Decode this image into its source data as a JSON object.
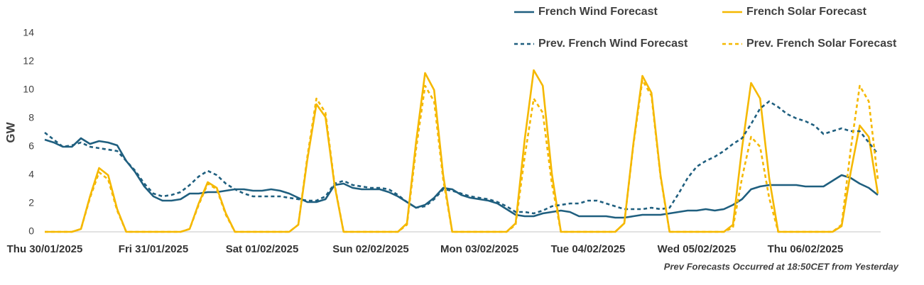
{
  "chart_data": {
    "type": "line",
    "y_label": "GW",
    "note": "Prev Forecasts Occurred at 18:50CET from Yesterday",
    "ylim": [
      0,
      14
    ],
    "yticks": [
      0,
      2,
      4,
      6,
      8,
      10,
      12,
      14
    ],
    "grid": false,
    "legend": "top-right",
    "categories": [
      "Thu 30/01/2025",
      null,
      null,
      null,
      null,
      null,
      null,
      null,
      null,
      null,
      null,
      null,
      "Fri 31/01/2025",
      null,
      null,
      null,
      null,
      null,
      null,
      null,
      null,
      null,
      null,
      null,
      "Sat 01/02/2025",
      null,
      null,
      null,
      null,
      null,
      null,
      null,
      null,
      null,
      null,
      null,
      "Sun 02/02/2025",
      null,
      null,
      null,
      null,
      null,
      null,
      null,
      null,
      null,
      null,
      null,
      "Mon 03/02/2025",
      null,
      null,
      null,
      null,
      null,
      null,
      null,
      null,
      null,
      null,
      null,
      "Tue 04/02/2025",
      null,
      null,
      null,
      null,
      null,
      null,
      null,
      null,
      null,
      null,
      null,
      "Wed 05/02/2025",
      null,
      null,
      null,
      null,
      null,
      null,
      null,
      null,
      null,
      null,
      null,
      "Thu 06/02/2025",
      null,
      null,
      null,
      null,
      null,
      null,
      null,
      null
    ],
    "series": [
      {
        "name": "French Wind Forecast",
        "color": "#1f5f7f",
        "line_style": "solid",
        "values": [
          6.5,
          6.3,
          6.0,
          6.0,
          6.6,
          6.2,
          6.4,
          6.3,
          6.1,
          5.0,
          4.2,
          3.2,
          2.5,
          2.2,
          2.2,
          2.3,
          2.7,
          2.7,
          2.8,
          2.8,
          2.9,
          3.0,
          3.0,
          2.9,
          2.9,
          3.0,
          2.9,
          2.7,
          2.4,
          2.1,
          2.1,
          2.3,
          3.3,
          3.4,
          3.1,
          3.0,
          3.0,
          3.0,
          2.8,
          2.5,
          2.1,
          1.7,
          1.9,
          2.4,
          3.1,
          3.0,
          2.6,
          2.4,
          2.3,
          2.2,
          2.0,
          1.6,
          1.2,
          1.1,
          1.1,
          1.3,
          1.4,
          1.5,
          1.4,
          1.1,
          1.1,
          1.1,
          1.1,
          1.0,
          1.0,
          1.1,
          1.2,
          1.2,
          1.2,
          1.3,
          1.4,
          1.5,
          1.5,
          1.6,
          1.5,
          1.6,
          1.9,
          2.3,
          3.0,
          3.2,
          3.3,
          3.3,
          3.3,
          3.3,
          3.2,
          3.2,
          3.2,
          3.6,
          4.0,
          3.8,
          3.4,
          3.1,
          2.6
        ]
      },
      {
        "name": "French Solar Forecast",
        "color": "#f5b800",
        "line_style": "solid",
        "values": [
          0,
          0,
          0,
          0,
          0.2,
          2.5,
          4.5,
          4.0,
          1.6,
          0,
          0,
          0,
          0,
          0,
          0,
          0,
          0.2,
          2.0,
          3.5,
          3.1,
          1.3,
          0,
          0,
          0,
          0,
          0,
          0,
          0,
          0.5,
          5.1,
          9.0,
          8.1,
          3.3,
          0,
          0,
          0,
          0,
          0,
          0,
          0,
          0.6,
          6.3,
          11.2,
          10.0,
          4.0,
          0,
          0,
          0,
          0,
          0,
          0,
          0,
          0.6,
          6.5,
          11.4,
          10.3,
          4.1,
          0,
          0,
          0,
          0,
          0,
          0,
          0,
          0.6,
          6.2,
          11.0,
          9.8,
          4.0,
          0,
          0,
          0,
          0,
          0,
          0,
          0,
          0.5,
          5.9,
          10.5,
          9.4,
          3.8,
          0,
          0,
          0,
          0,
          0,
          0,
          0,
          0.4,
          4.2,
          7.5,
          6.7,
          2.7
        ]
      },
      {
        "name": "Prev. French Wind Forecast",
        "color": "#1f5f7f",
        "line_style": "dashed",
        "values": [
          7.0,
          6.5,
          6.0,
          6.1,
          6.3,
          6.0,
          5.9,
          5.8,
          5.7,
          5.0,
          4.3,
          3.4,
          2.7,
          2.5,
          2.6,
          2.8,
          3.3,
          3.9,
          4.3,
          4.0,
          3.4,
          3.0,
          2.7,
          2.5,
          2.5,
          2.5,
          2.5,
          2.4,
          2.3,
          2.2,
          2.2,
          2.5,
          3.4,
          3.6,
          3.3,
          3.2,
          3.1,
          3.1,
          3.0,
          2.6,
          2.1,
          1.7,
          1.8,
          2.3,
          3.0,
          2.9,
          2.7,
          2.5,
          2.4,
          2.3,
          2.1,
          1.8,
          1.4,
          1.4,
          1.3,
          1.5,
          1.8,
          1.9,
          2.0,
          2.0,
          2.2,
          2.2,
          2.0,
          1.8,
          1.6,
          1.6,
          1.6,
          1.7,
          1.6,
          1.7,
          2.7,
          3.8,
          4.6,
          5.0,
          5.3,
          5.7,
          6.2,
          6.6,
          7.6,
          8.7,
          9.2,
          8.8,
          8.3,
          8.0,
          7.8,
          7.5,
          6.9,
          7.1,
          7.3,
          7.1,
          7.1,
          6.3,
          5.5
        ]
      },
      {
        "name": "Prev. French Solar Forecast",
        "color": "#f5b800",
        "line_style": "dashed",
        "values": [
          0,
          0,
          0,
          0,
          0.2,
          2.4,
          4.2,
          3.7,
          1.5,
          0,
          0,
          0,
          0,
          0,
          0,
          0,
          0.2,
          1.9,
          3.4,
          3.0,
          1.2,
          0,
          0,
          0,
          0,
          0,
          0,
          0,
          0.5,
          5.3,
          9.4,
          8.4,
          3.4,
          0,
          0,
          0,
          0,
          0,
          0,
          0,
          0.5,
          5.8,
          10.3,
          9.2,
          3.7,
          0,
          0,
          0,
          0,
          0,
          0,
          0,
          0.5,
          5.3,
          9.4,
          8.4,
          3.4,
          0,
          0,
          0,
          0,
          0,
          0,
          0,
          0.6,
          6.1,
          10.7,
          9.6,
          3.9,
          0,
          0,
          0,
          0,
          0,
          0,
          0,
          0.3,
          3.8,
          6.7,
          6.0,
          2.4,
          0,
          0,
          0,
          0,
          0,
          0,
          0,
          0.5,
          5.8,
          10.3,
          9.2,
          3.7
        ]
      }
    ]
  }
}
